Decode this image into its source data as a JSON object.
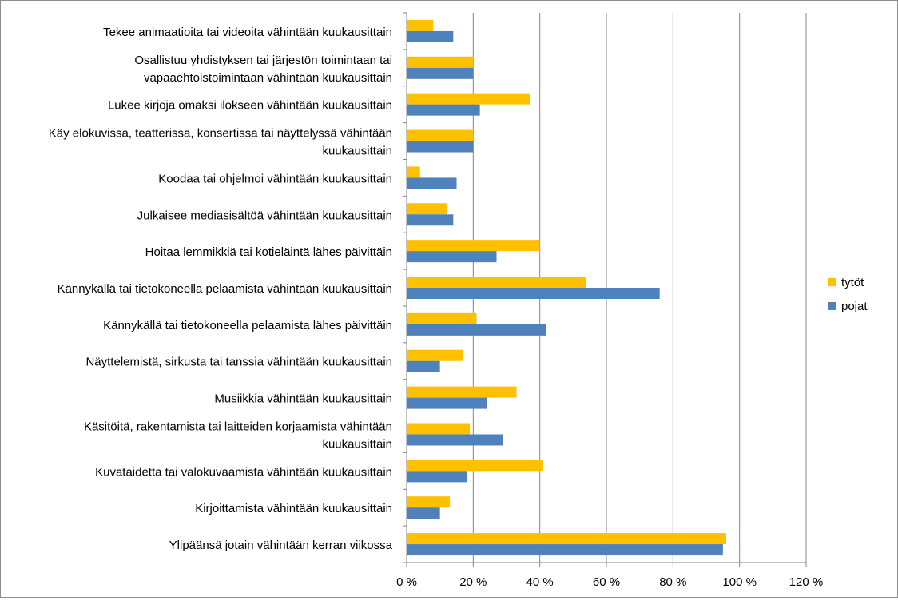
{
  "chart_data": {
    "type": "bar",
    "orientation": "horizontal",
    "title": "",
    "xlabel": "",
    "ylabel": "",
    "xlim": [
      0,
      120
    ],
    "x_ticks": [
      "0 %",
      "20 %",
      "40 %",
      "60 %",
      "80 %",
      "100 %",
      "120 %"
    ],
    "grid": "vertical",
    "legend_position": "right",
    "categories": [
      [
        "Tekee animaatioita tai videoita vähintään kuukausittain"
      ],
      [
        "Osallistuu yhdistyksen tai järjestön toimintaan tai",
        "vapaaehtoistoimintaan vähintään kuukausittain"
      ],
      [
        "Lukee kirjoja omaksi ilokseen vähintään kuukausittain"
      ],
      [
        "Käy elokuvissa, teatterissa, konsertissa tai näyttelyssä vähintään",
        "kuukausittain"
      ],
      [
        "Koodaa tai ohjelmoi vähintään kuukausittain"
      ],
      [
        "Julkaisee mediasisältöä vähintään kuukausittain"
      ],
      [
        "Hoitaa lemmikkiä tai kotieläintä lähes päivittäin"
      ],
      [
        "Kännykällä tai tietokoneella pelaamista vähintään kuukausittain"
      ],
      [
        "Kännykällä tai tietokoneella pelaamista lähes päivittäin"
      ],
      [
        "Näyttelemistä, sirkusta tai tanssia vähintään kuukausittain"
      ],
      [
        "Musiikkia vähintään kuukausittain"
      ],
      [
        "Käsitöitä, rakentamista tai laitteiden korjaamista vähintään",
        "kuukausittain"
      ],
      [
        "Kuvataidetta tai valokuvaamista vähintään kuukausittain"
      ],
      [
        "Kirjoittamista vähintään kuukausittain"
      ],
      [
        "Ylipäänsä jotain vähintään kerran viikossa"
      ]
    ],
    "series": [
      {
        "name": "tytöt",
        "color": "#FFC000",
        "values": [
          8,
          20,
          37,
          20,
          4,
          12,
          40,
          54,
          21,
          17,
          33,
          19,
          41,
          13,
          96
        ]
      },
      {
        "name": "pojat",
        "color": "#4F81BD",
        "values": [
          14,
          20,
          22,
          20,
          15,
          14,
          27,
          76,
          42,
          10,
          24,
          29,
          18,
          10,
          95
        ]
      }
    ],
    "colors": {
      "grid": "#868686",
      "axis": "#868686"
    }
  }
}
